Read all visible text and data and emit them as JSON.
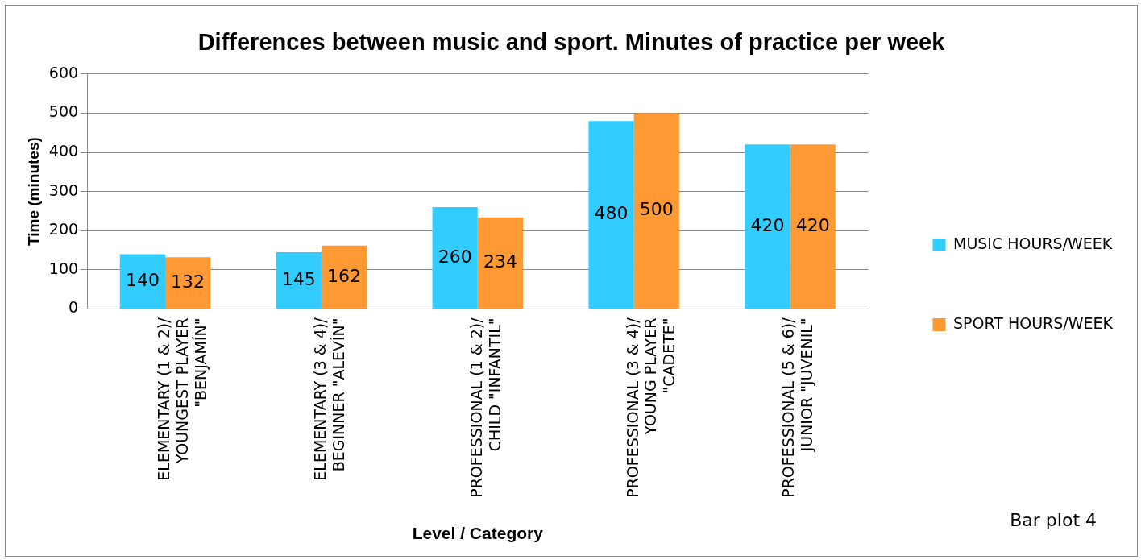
{
  "chart_data": {
    "type": "bar",
    "title": "Differences between music and sport. Minutes of practice per week",
    "xlabel": "Level / Category",
    "ylabel": "Time (minutes)",
    "categories": [
      "ELEMENTARY (1 & 2)/ YOUNGEST PLAYER \"BENJAMÍN\"",
      "ELEMENTARY (3 & 4)/ BEGINNER \"ALEVÍN\"",
      "PROFESSIONAL (1 & 2)/ CHILD \"INFANTIL\"",
      "PROFESSIONAL (3 & 4)/ YOUNG PLAYER \"CADETE\"",
      "PROFESSIONAL (5 & 6)/ JUNIOR \"JUVENIL\""
    ],
    "series": [
      {
        "name": "MUSIC HOURS/WEEK",
        "color": "#33ccff",
        "values": [
          140,
          145,
          260,
          480,
          420
        ]
      },
      {
        "name": "SPORT HOURS/WEEK",
        "color": "#ff9933",
        "values": [
          132,
          162,
          234,
          500,
          420
        ]
      }
    ],
    "ylim": [
      0,
      600
    ],
    "yticks": [
      0,
      100,
      200,
      300,
      400,
      500,
      600
    ],
    "grid": "y",
    "legend": "right",
    "data_labels": true,
    "annotations": [
      "Bar plot 4"
    ]
  }
}
